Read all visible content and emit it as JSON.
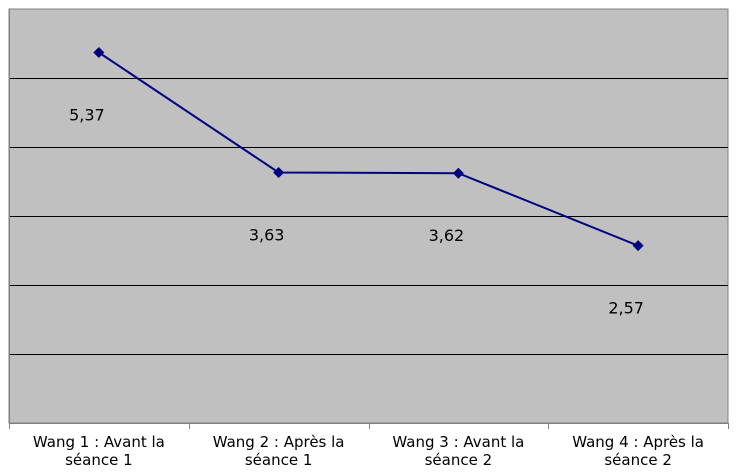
{
  "chart_data": {
    "type": "line",
    "categories": [
      [
        "Wang 1 : Avant la",
        "séance 1"
      ],
      [
        "Wang 2 : Après la",
        "séance 1"
      ],
      [
        "Wang 3 : Avant la",
        "séance 2"
      ],
      [
        "Wang 4 : Après la",
        "séance 2"
      ]
    ],
    "series": [
      {
        "values": [
          5.37,
          3.63,
          3.62,
          2.57
        ]
      }
    ],
    "data_labels": [
      "5,37",
      "3,63",
      "3,62",
      "2,57"
    ],
    "ylim": [
      0,
      6
    ],
    "y_gridline_step": 1,
    "y_tick_labels_shown": false,
    "grid": true,
    "legend": "none",
    "colors": {
      "plot_background": "#c0c0c0",
      "line": "#000080",
      "marker": "#000080",
      "gridline": "#000000",
      "axis": "#808080"
    }
  }
}
